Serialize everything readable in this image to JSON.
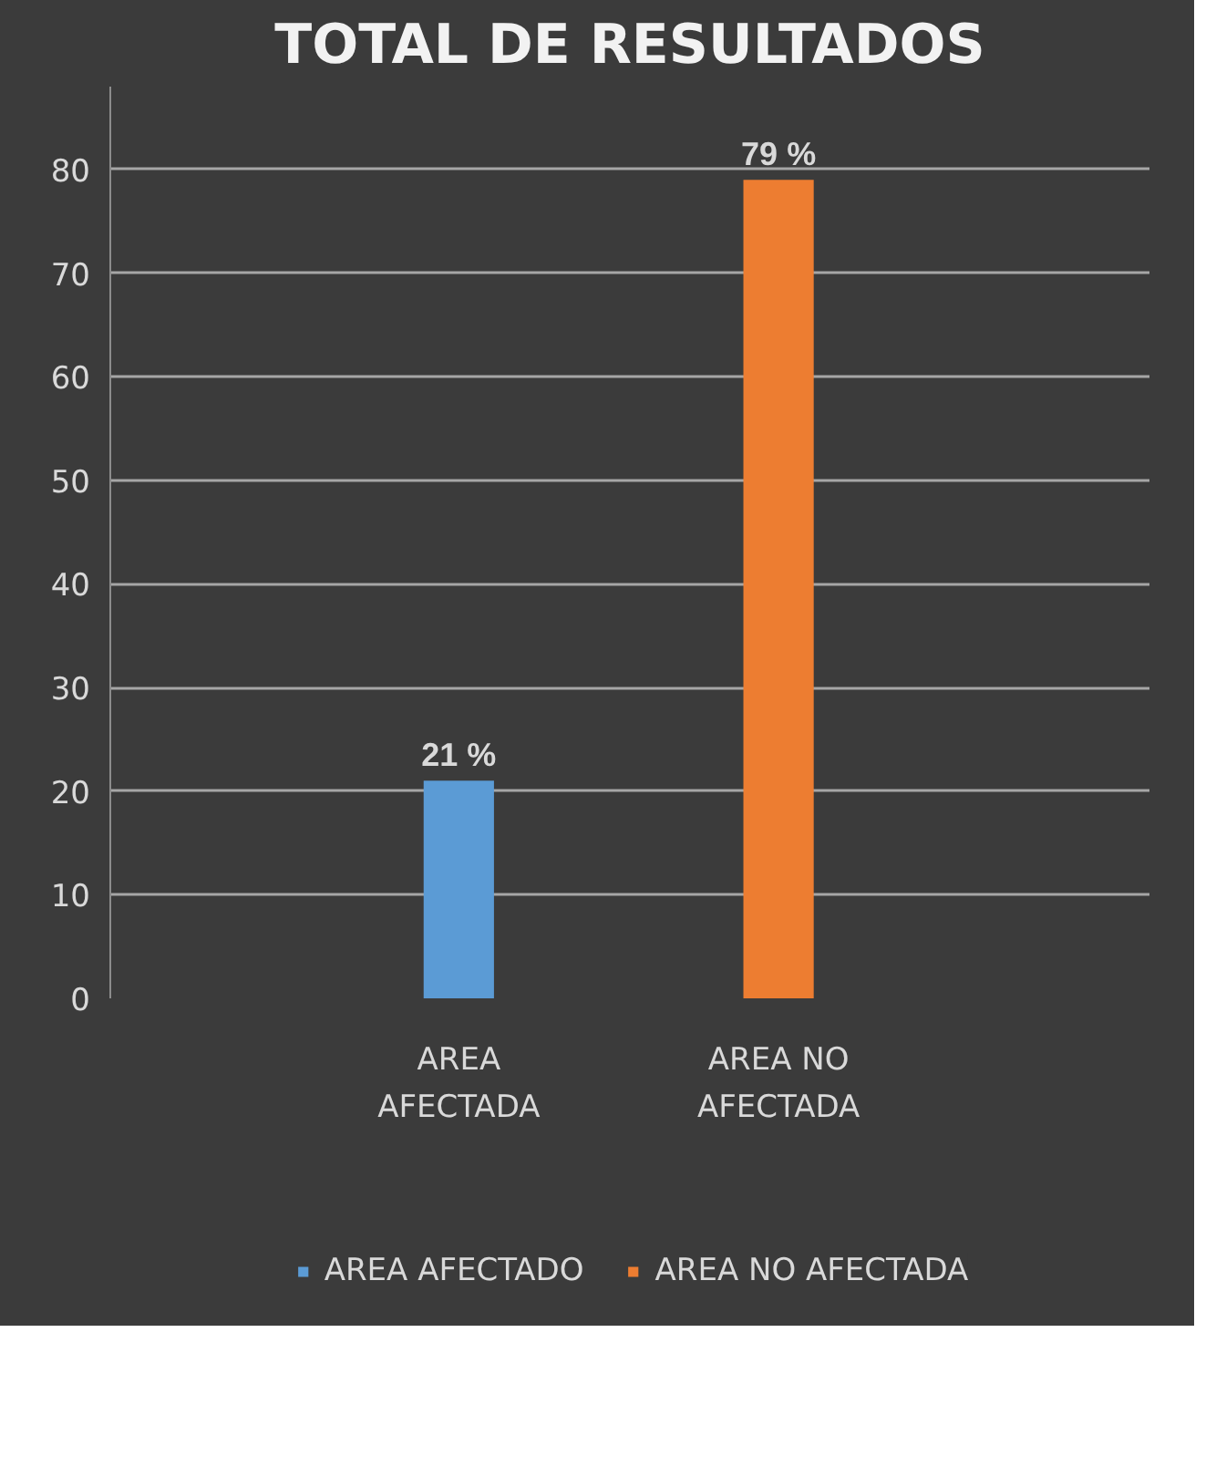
{
  "chart_data": {
    "type": "bar",
    "title": "TOTAL DE RESULTADOS",
    "categories": [
      "AREA AFECTADA",
      "AREA NO AFECTADA"
    ],
    "series": [
      {
        "name": "AREA AFECTADO",
        "color": "#5b9bd5",
        "values": [
          21,
          null
        ],
        "value_labels": [
          "21 %",
          null
        ]
      },
      {
        "name": "AREA NO AFECTADA",
        "color": "#ed7d31",
        "values": [
          null,
          79
        ],
        "value_labels": [
          null,
          "79 %"
        ]
      }
    ],
    "ylim": [
      0,
      88
    ],
    "yticks": [
      0,
      10,
      20,
      30,
      40,
      50,
      60,
      70,
      80
    ],
    "grid": "y",
    "legend": "bottom"
  }
}
